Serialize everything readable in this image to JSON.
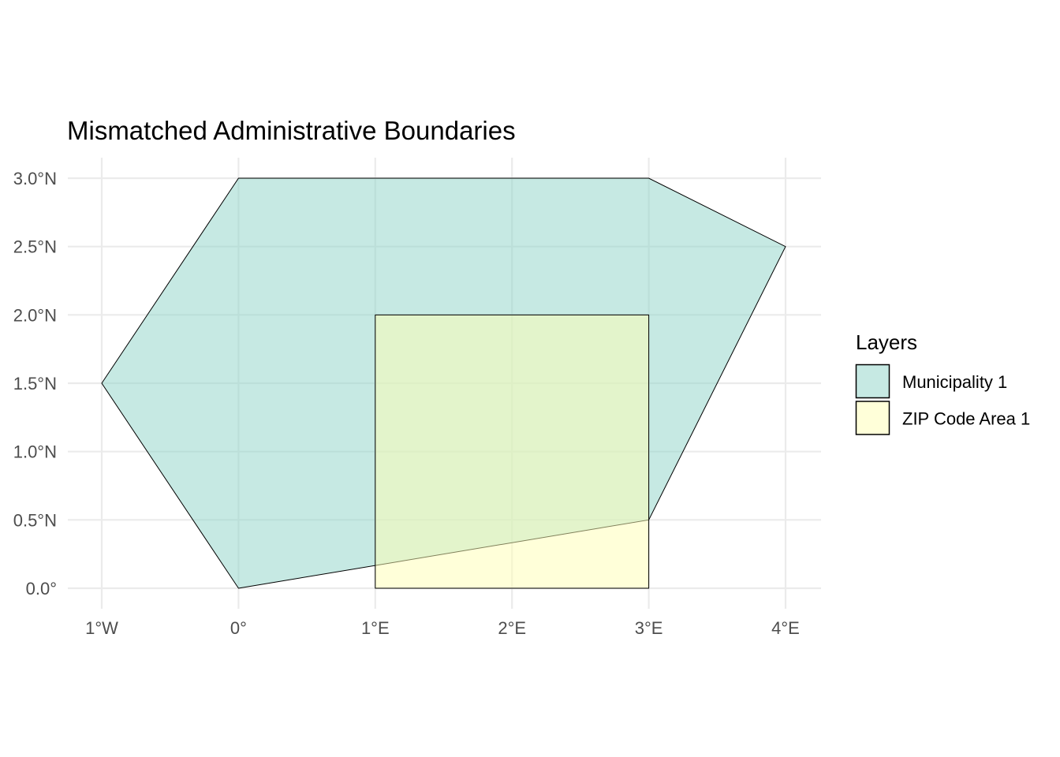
{
  "chart_data": {
    "type": "map",
    "title": "Mismatched Administrative Boundaries",
    "xlim": [
      -1,
      4
    ],
    "ylim": [
      0,
      3
    ],
    "x_ticks": [
      {
        "value": -1,
        "label": "1°W"
      },
      {
        "value": 0,
        "label": "0°"
      },
      {
        "value": 1,
        "label": "1°E"
      },
      {
        "value": 2,
        "label": "2°E"
      },
      {
        "value": 3,
        "label": "3°E"
      },
      {
        "value": 4,
        "label": "4°E"
      }
    ],
    "y_ticks": [
      {
        "value": 0,
        "label": "0.0°"
      },
      {
        "value": 0.5,
        "label": "0.5°N"
      },
      {
        "value": 1,
        "label": "1.0°N"
      },
      {
        "value": 1.5,
        "label": "1.5°N"
      },
      {
        "value": 2,
        "label": "2.0°N"
      },
      {
        "value": 2.5,
        "label": "2.5°N"
      },
      {
        "value": 3,
        "label": "3.0°N"
      }
    ],
    "grid": true,
    "legend": {
      "title": "Layers",
      "position": "right",
      "entries": [
        {
          "label": "Municipality 1",
          "color": "#8dd3c7"
        },
        {
          "label": "ZIP Code Area 1",
          "color": "#ffffb3"
        }
      ]
    },
    "layers": [
      {
        "name": "Municipality 1",
        "fill": "#8dd3c7",
        "opacity": 0.5,
        "coordinates": [
          [
            0,
            0
          ],
          [
            3,
            0.5
          ],
          [
            4,
            2.5
          ],
          [
            3,
            3
          ],
          [
            0,
            3
          ],
          [
            -1,
            1.5
          ],
          [
            0,
            0
          ]
        ]
      },
      {
        "name": "ZIP Code Area 1",
        "fill": "#ffffb3",
        "opacity": 0.5,
        "coordinates": [
          [
            1,
            0
          ],
          [
            3,
            0
          ],
          [
            3,
            2
          ],
          [
            1,
            2
          ],
          [
            1,
            0
          ]
        ]
      }
    ]
  }
}
